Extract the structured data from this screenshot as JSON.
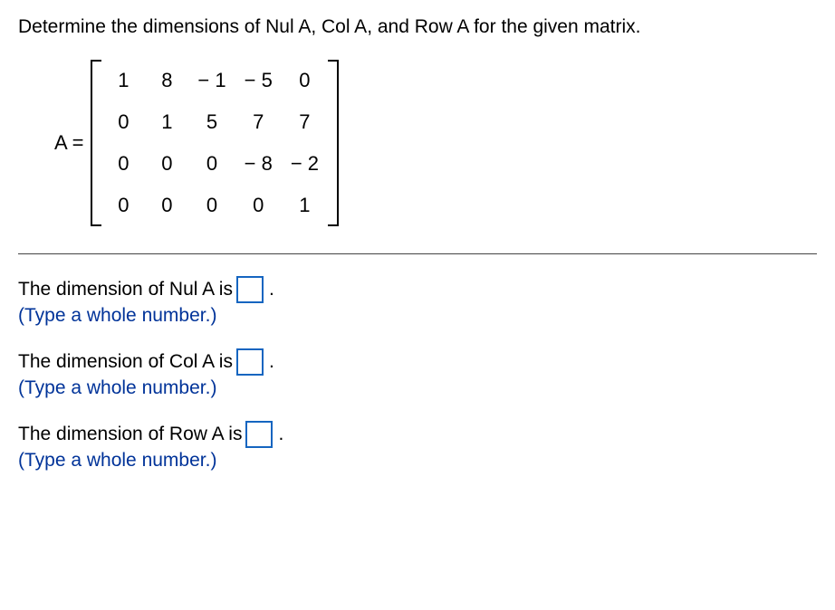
{
  "question": "Determine the dimensions of Nul A, Col A, and Row A for the given matrix.",
  "matrix": {
    "label": "A =",
    "rows": [
      [
        "1",
        "8",
        "− 1",
        "− 5",
        "0"
      ],
      [
        "0",
        "1",
        "5",
        "7",
        "7"
      ],
      [
        "0",
        "0",
        "0",
        "− 8",
        "− 2"
      ],
      [
        "0",
        "0",
        "0",
        "0",
        "1"
      ]
    ],
    "cell_fontsize": 22,
    "bracket_color": "#000000"
  },
  "answers": [
    {
      "prompt_before": "The dimension of Nul A is ",
      "value": "",
      "prompt_after": ".",
      "hint": "(Type a whole number.)"
    },
    {
      "prompt_before": "The dimension of Col A is ",
      "value": "",
      "prompt_after": ".",
      "hint": "(Type a whole number.)"
    },
    {
      "prompt_before": "The dimension of Row A is ",
      "value": "",
      "prompt_after": ".",
      "hint": "(Type a whole number.)"
    }
  ],
  "colors": {
    "text": "#000000",
    "hint": "#003399",
    "input_border": "#1565c0",
    "separator": "#444444"
  }
}
